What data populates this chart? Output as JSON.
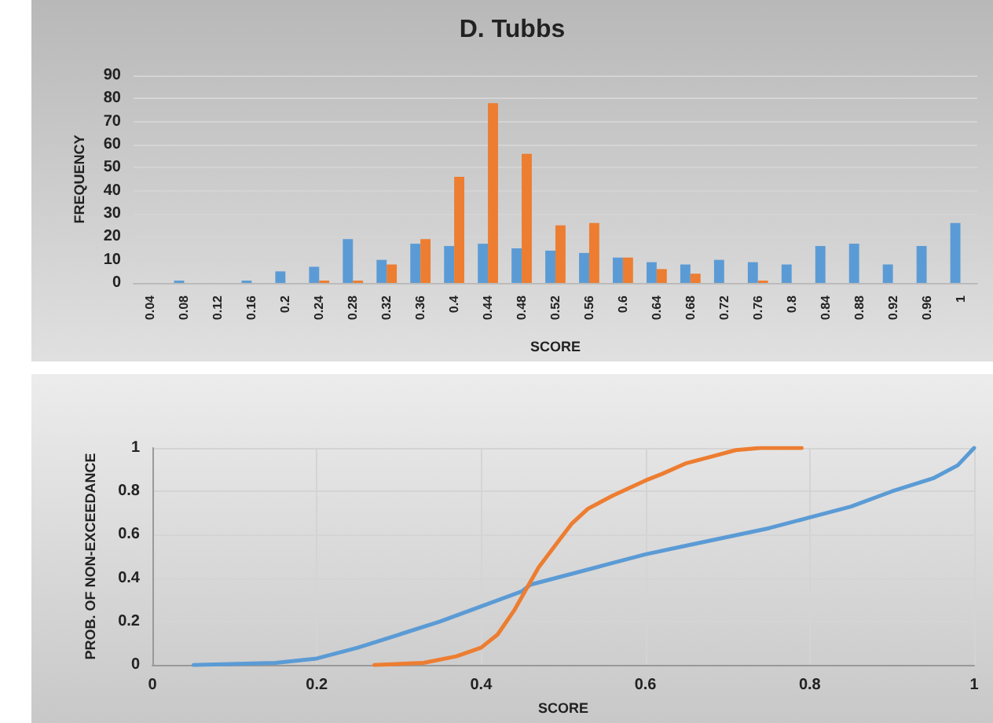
{
  "chart_data": [
    {
      "type": "bar",
      "title": "D. Tubbs",
      "xlabel": "SCORE",
      "ylabel": "FREQUENCY",
      "categories": [
        "0.04",
        "0.08",
        "0.12",
        "0.16",
        "0.2",
        "0.24",
        "0.28",
        "0.32",
        "0.36",
        "0.4",
        "0.44",
        "0.48",
        "0.52",
        "0.56",
        "0.6",
        "0.64",
        "0.68",
        "0.72",
        "0.76",
        "0.8",
        "0.84",
        "0.88",
        "0.92",
        "0.96",
        "1"
      ],
      "series": [
        {
          "color": "#5b9bd5",
          "values": [
            0,
            1,
            0,
            1,
            5,
            7,
            19,
            10,
            17,
            16,
            17,
            15,
            14,
            13,
            11,
            9,
            8,
            10,
            9,
            8,
            16,
            17,
            8,
            16,
            26
          ]
        },
        {
          "color": "#ed7d31",
          "values": [
            0,
            0,
            0,
            0,
            0,
            1,
            1,
            8,
            19,
            46,
            78,
            56,
            25,
            26,
            11,
            6,
            4,
            0,
            1,
            0,
            0,
            0,
            0,
            0,
            0
          ]
        }
      ],
      "ylim": [
        0,
        90
      ],
      "yticks": [
        0,
        10,
        20,
        30,
        40,
        50,
        60,
        70,
        80,
        90
      ],
      "grid": "y"
    },
    {
      "type": "line",
      "xlabel": "SCORE",
      "ylabel": "PROB. OF NON-EXCEEDANCE",
      "xlim": [
        0,
        1
      ],
      "xticks": [
        0,
        0.2,
        0.4,
        0.6,
        0.8,
        1
      ],
      "ylim": [
        0,
        1
      ],
      "yticks": [
        0,
        0.2,
        0.4,
        0.6,
        0.8,
        1
      ],
      "grid": true,
      "marker": "none",
      "line_style": "solid",
      "series": [
        {
          "color": "#5b9bd5",
          "x": [
            0.05,
            0.15,
            0.2,
            0.25,
            0.3,
            0.35,
            0.4,
            0.45,
            0.46,
            0.5,
            0.55,
            0.6,
            0.65,
            0.7,
            0.75,
            0.8,
            0.85,
            0.9,
            0.95,
            0.98,
            1
          ],
          "values": [
            0,
            0.01,
            0.03,
            0.08,
            0.14,
            0.2,
            0.27,
            0.34,
            0.37,
            0.41,
            0.46,
            0.51,
            0.55,
            0.59,
            0.63,
            0.68,
            0.73,
            0.8,
            0.86,
            0.92,
            1
          ]
        },
        {
          "color": "#ed7d31",
          "x": [
            0.27,
            0.33,
            0.37,
            0.4,
            0.42,
            0.44,
            0.455,
            0.47,
            0.49,
            0.51,
            0.53,
            0.56,
            0.6,
            0.62,
            0.65,
            0.68,
            0.71,
            0.74,
            0.79
          ],
          "values": [
            0,
            0.01,
            0.04,
            0.08,
            0.14,
            0.25,
            0.35,
            0.45,
            0.55,
            0.65,
            0.72,
            0.78,
            0.85,
            0.88,
            0.93,
            0.96,
            0.99,
            1,
            1
          ]
        }
      ]
    }
  ]
}
